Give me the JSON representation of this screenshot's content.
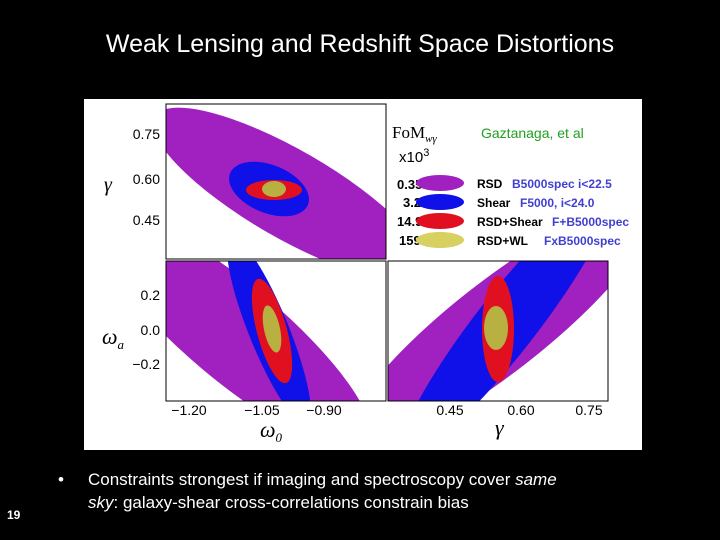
{
  "slide": {
    "title": "Weak Lensing and Redshift Space Distortions",
    "number": "19"
  },
  "figure": {
    "citation": "Gaztanaga, et al",
    "fom_label": "FoM",
    "fom_sub": "wγ",
    "fom_scale": "x10",
    "fom_exp": "3",
    "legend": [
      {
        "value": "0.35",
        "name": "RSD",
        "survey": "B5000spec i<22.5",
        "color": "#a020c0",
        "survey_color": "#4040d0"
      },
      {
        "value": "3.2",
        "name": "Shear",
        "survey": "F5000, i<24.0",
        "color": "#1010e8",
        "survey_color": "#4040d0"
      },
      {
        "value": "14.9",
        "name": "RSD+Shear",
        "survey": "F+B5000spec",
        "color": "#e01020",
        "survey_color": "#4040d0"
      },
      {
        "value": "159",
        "name": "RSD+WL",
        "survey": "FxB5000spec",
        "color": "#d8d060",
        "survey_color": "#4040d0"
      }
    ],
    "panels": {
      "top_left": {
        "ylabel": "γ",
        "yticks": [
          "0.75",
          "0.60",
          "0.45"
        ]
      },
      "bottom_left": {
        "ylabel": "ω",
        "ylabel_sub": "a",
        "yticks": [
          "0.2",
          "0.0",
          "−0.2"
        ],
        "xlabel": "ω",
        "xlabel_sub": "0",
        "xticks": [
          "−1.20",
          "−1.05",
          "−0.90"
        ]
      },
      "bottom_right": {
        "xlabel": "γ",
        "xticks": [
          "0.45",
          "0.60",
          "0.75"
        ]
      }
    }
  },
  "bullet": {
    "marker": "•",
    "line1_a": "Constraints strongest if imaging and spectroscopy cover ",
    "line1_em": "same",
    "line2_em": "sky",
    "line2_b": ": galaxy-shear cross-correlations constrain bias"
  },
  "colors": {
    "rsd": "#a020c0",
    "shear": "#1010e8",
    "rsd_shear": "#e01020",
    "rsd_wl": "#b8b040",
    "survey_text": "#4040d0",
    "citation": "#20a020"
  }
}
